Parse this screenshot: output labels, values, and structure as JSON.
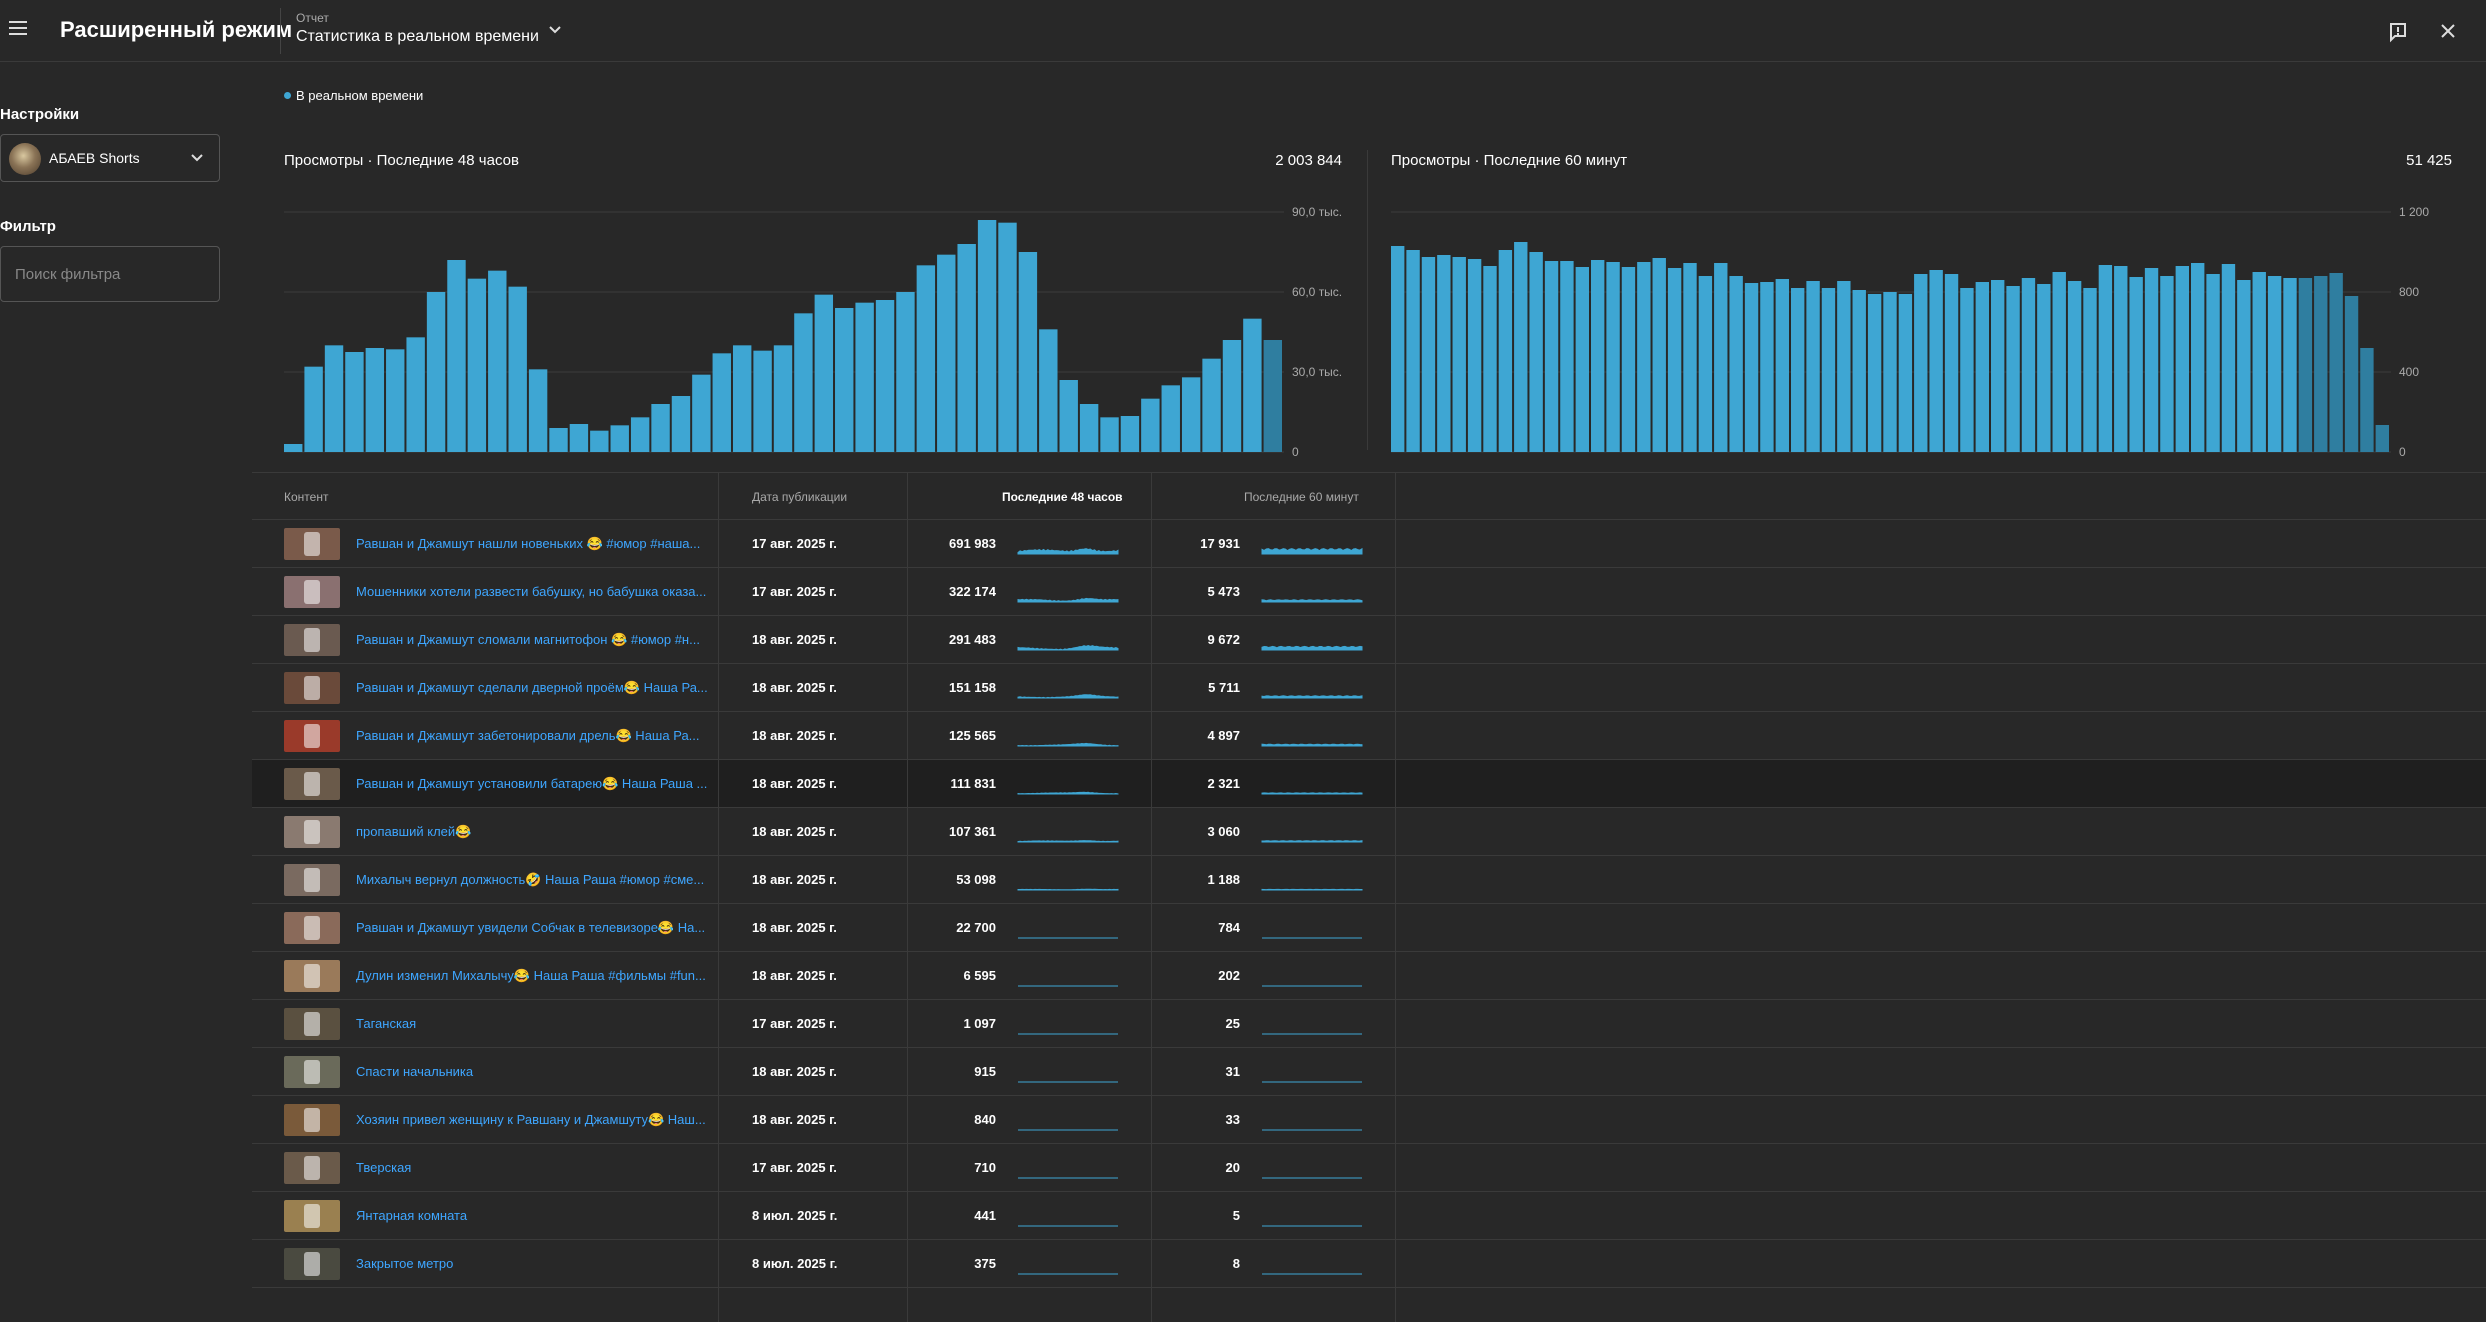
{
  "app": {
    "title": "Расширенный режим",
    "report_label": "Отчет",
    "report_name": "Статистика в реальном времени"
  },
  "sidebar": {
    "settings_label": "Настройки",
    "channel_name": "АБАЕВ Shorts",
    "filter_label": "Фильтр",
    "filter_placeholder": "Поиск фильтра"
  },
  "realtime_label": "В реальном времени",
  "colors": {
    "accent": "#3ea6d3",
    "link": "#3ea6ff",
    "background": "#282828"
  },
  "icons": {
    "menu": "menu-icon",
    "dropdown": "chevron-down-icon",
    "feedback": "feedback-icon",
    "close": "close-icon"
  },
  "chart_data": [
    {
      "type": "bar",
      "title": "Просмотры · Последние 48 часов",
      "total": "2 003 844",
      "ylim": [
        0,
        90000
      ],
      "yticks": [
        0,
        30000,
        60000,
        90000
      ],
      "ytick_labels": [
        "0",
        "30,0 тыс.",
        "60,0 тыс.",
        "90,0 тыс."
      ],
      "grid": true,
      "values": [
        3000,
        32000,
        40000,
        37500,
        39000,
        38500,
        43000,
        60000,
        72000,
        65000,
        68000,
        62000,
        31000,
        9000,
        10500,
        8000,
        10000,
        13000,
        18000,
        21000,
        29000,
        37000,
        40000,
        38000,
        40000,
        52000,
        59000,
        54000,
        56000,
        57000,
        60000,
        70000,
        74000,
        78000,
        87000,
        86000,
        75000,
        46000,
        27000,
        18000,
        13000,
        13500,
        20000,
        25000,
        28000,
        35000,
        42000,
        50000,
        42000
      ],
      "dim_last": 1
    },
    {
      "type": "bar",
      "title": "Просмотры · Последние 60 минут",
      "total": "51 425",
      "ylim": [
        0,
        1200
      ],
      "yticks": [
        0,
        400,
        800,
        1200
      ],
      "ytick_labels": [
        "0",
        "400",
        "800",
        "1 200"
      ],
      "grid": true,
      "values": [
        1030,
        1010,
        975,
        985,
        975,
        965,
        930,
        1010,
        1050,
        1000,
        955,
        955,
        925,
        960,
        950,
        925,
        950,
        970,
        920,
        945,
        880,
        945,
        880,
        845,
        850,
        865,
        820,
        855,
        820,
        855,
        810,
        790,
        800,
        790,
        890,
        910,
        890,
        820,
        850,
        860,
        830,
        870,
        840,
        900,
        855,
        820,
        935,
        930,
        875,
        920,
        880,
        930,
        945,
        890,
        940,
        860,
        900,
        880,
        870,
        870,
        880,
        895,
        780,
        520,
        135
      ],
      "dim_last": 6
    }
  ],
  "table": {
    "headers": {
      "content": "Контент",
      "date": "Дата публикации",
      "last48": "Последние 48 часов",
      "last60": "Последние 60 минут"
    },
    "rows": [
      {
        "title": "Равшан и Джамшут нашли новеньких 😂 #юмор #наша...",
        "date": "17 авг. 2025 г.",
        "v48": "691 983",
        "v60": "17 931",
        "thumb": "#7a5a4a",
        "s48": 5,
        "s60": 6
      },
      {
        "title": "Мошенники хотели развести бабушку, но бабушка оказа...",
        "date": "17 авг. 2025 г.",
        "v48": "322 174",
        "v60": "5 473",
        "thumb": "#8a7070",
        "s48": 3,
        "s60": 2.4
      },
      {
        "title": "Равшан и Джамшут сломали магнитофон 😂 #юмор #н...",
        "date": "18 авг. 2025 г.",
        "v48": "291 483",
        "v60": "9 672",
        "thumb": "#6a5a50",
        "s48": 3,
        "s60": 4
      },
      {
        "title": "Равшан и Джамшут сделали дверной проём😂 Наша Ра...",
        "date": "18 авг. 2025 г.",
        "v48": "151 158",
        "v60": "5 711",
        "thumb": "#6a4a3a",
        "s48": 2,
        "s60": 2.4
      },
      {
        "title": "Равшан и Джамшут забетонировали дрель😂 Наша Ра...",
        "date": "18 авг. 2025 г.",
        "v48": "125 565",
        "v60": "4 897",
        "thumb": "#9a3a2a",
        "s48": 1.6,
        "s60": 2
      },
      {
        "title": "Равшан и Джамшут установили батарею😂 Наша Раша ...",
        "date": "18 авг. 2025 г.",
        "v48": "111 831",
        "v60": "2 321",
        "thumb": "#6a5a4a",
        "s48": 1.3,
        "s60": 1.2,
        "highlight": true
      },
      {
        "title": "пропавший клей😂",
        "date": "18 авг. 2025 г.",
        "v48": "107 361",
        "v60": "3 060",
        "thumb": "#8a7a70",
        "s48": 1.3,
        "s60": 1.4
      },
      {
        "title": "Михалыч вернул должность🤣 Наша Раша #юмор #сме...",
        "date": "18 авг. 2025 г.",
        "v48": "53 098",
        "v60": "1 188",
        "thumb": "#7a6a60",
        "s48": 0.7,
        "s60": 0.7
      },
      {
        "title": "Равшан и Джамшут увидели Собчак в телевизоре😂 На...",
        "date": "18 авг. 2025 г.",
        "v48": "22 700",
        "v60": "784",
        "thumb": "#8a6a5a",
        "s48": 0,
        "s60": 0
      },
      {
        "title": "Дулин изменил Михалычу😂 Наша Раша #фильмы #fun...",
        "date": "18 авг. 2025 г.",
        "v48": "6 595",
        "v60": "202",
        "thumb": "#9a7a5a",
        "s48": 0,
        "s60": 0
      },
      {
        "title": "Таганская",
        "date": "17 авг. 2025 г.",
        "v48": "1 097",
        "v60": "25",
        "thumb": "#5a5040",
        "s48": 0,
        "s60": 0
      },
      {
        "title": "Спасти начальника",
        "date": "18 авг. 2025 г.",
        "v48": "915",
        "v60": "31",
        "thumb": "#6a6a5a",
        "s48": 0,
        "s60": 0
      },
      {
        "title": "Хозяин привел женщину к Равшану и Джамшуту😂 Наш...",
        "date": "18 авг. 2025 г.",
        "v48": "840",
        "v60": "33",
        "thumb": "#7a5a3a",
        "s48": 0,
        "s60": 0
      },
      {
        "title": "Тверская",
        "date": "17 авг. 2025 г.",
        "v48": "710",
        "v60": "20",
        "thumb": "#6a5a4a",
        "s48": 0,
        "s60": 0
      },
      {
        "title": "Янтарная комната",
        "date": "8 июл. 2025 г.",
        "v48": "441",
        "v60": "5",
        "thumb": "#9a8050",
        "s48": 0,
        "s60": 0
      },
      {
        "title": "Закрытое метро",
        "date": "8 июл. 2025 г.",
        "v48": "375",
        "v60": "8",
        "thumb": "#4a4a40",
        "s48": 0,
        "s60": 0
      }
    ]
  }
}
